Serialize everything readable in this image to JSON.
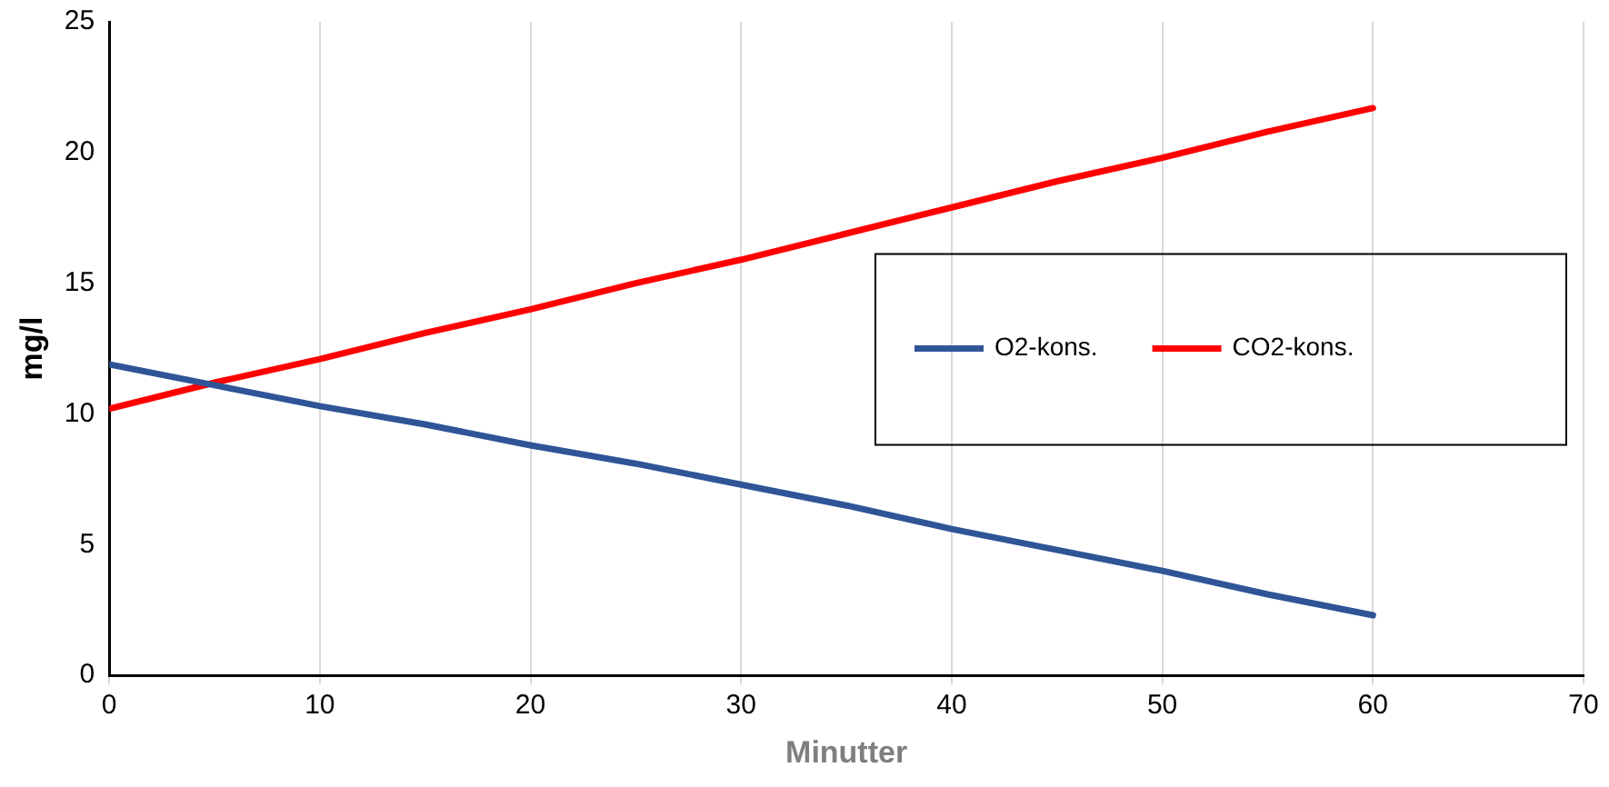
{
  "chart_data": {
    "type": "line",
    "xlabel": "Minutter",
    "ylabel": "mg/l",
    "x": [
      0,
      5,
      10,
      15,
      20,
      25,
      30,
      35,
      40,
      45,
      50,
      55,
      60
    ],
    "series": [
      {
        "name": "O2-kons.",
        "color": "#2f5597",
        "values": [
          11.9,
          11.1,
          10.3,
          9.6,
          8.8,
          8.1,
          7.3,
          6.5,
          5.6,
          4.8,
          4.0,
          3.1,
          2.3
        ]
      },
      {
        "name": "CO2-kons.",
        "color": "#ff0000",
        "values": [
          10.2,
          11.2,
          12.1,
          13.1,
          14.0,
          15.0,
          15.9,
          16.9,
          17.9,
          18.9,
          19.8,
          20.8,
          21.7
        ]
      }
    ],
    "xlim": [
      0,
      70
    ],
    "xticks": [
      0,
      10,
      20,
      30,
      40,
      50,
      60,
      70
    ],
    "ylim": [
      0,
      25
    ],
    "yticks": [
      0,
      5,
      10,
      15,
      20,
      25
    ],
    "grid": "x",
    "legend": "right",
    "marker": "none",
    "line_style": "solid"
  }
}
